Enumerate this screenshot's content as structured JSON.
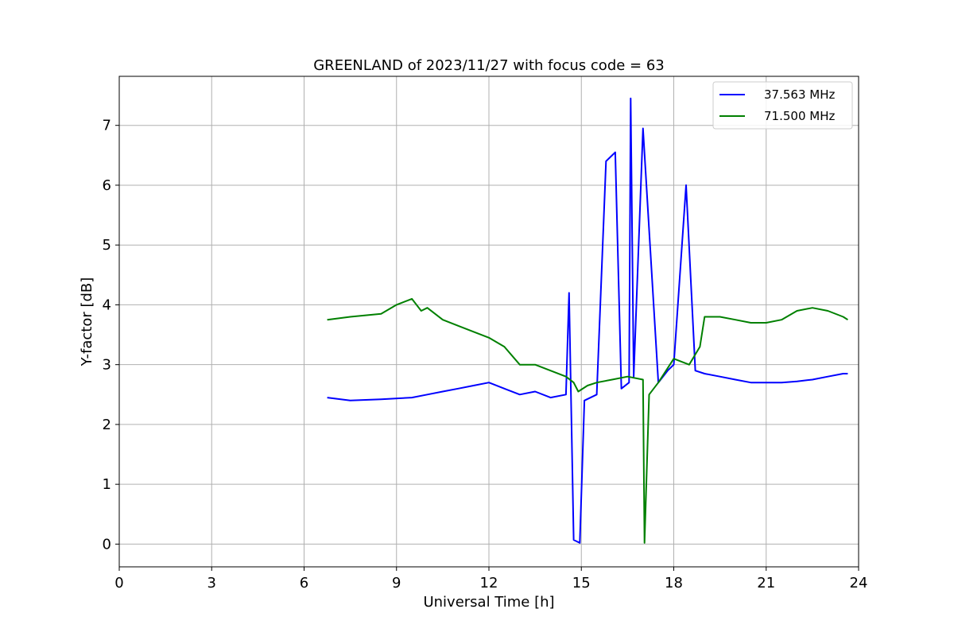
{
  "chart_data": {
    "type": "line",
    "title": "GREENLAND of 2023/11/27 with focus code = 63",
    "xlabel": "Universal Time [h]",
    "ylabel": "Y-factor [dB]",
    "xlim": [
      0,
      24
    ],
    "ylim": [
      -0.38,
      7.82
    ],
    "xticks": [
      0,
      3,
      6,
      9,
      12,
      15,
      18,
      21,
      24
    ],
    "yticks": [
      0,
      1,
      2,
      3,
      4,
      5,
      6,
      7
    ],
    "grid": true,
    "legend_position": "top-right",
    "series": [
      {
        "name": "37.563 MHz",
        "color": "#0000ff",
        "x": [
          6.75,
          7.5,
          8.5,
          9.5,
          10.0,
          10.5,
          11.0,
          11.5,
          12.0,
          12.5,
          13.0,
          13.5,
          14.0,
          14.5,
          14.6,
          14.75,
          14.95,
          15.1,
          15.5,
          15.8,
          15.9,
          16.1,
          16.3,
          16.55,
          16.6,
          16.7,
          17.0,
          17.5,
          17.8,
          18.0,
          18.4,
          18.7,
          19.0,
          19.5,
          20.0,
          20.5,
          21.0,
          21.5,
          22.0,
          22.5,
          23.0,
          23.5,
          23.65
        ],
        "y": [
          2.45,
          2.4,
          2.42,
          2.45,
          2.5,
          2.55,
          2.6,
          2.65,
          2.7,
          2.6,
          2.5,
          2.55,
          2.45,
          2.5,
          4.2,
          0.07,
          0.02,
          2.4,
          2.5,
          6.4,
          6.45,
          6.55,
          2.6,
          2.7,
          7.45,
          2.8,
          6.95,
          2.7,
          2.9,
          3.0,
          6.0,
          2.9,
          2.85,
          2.8,
          2.75,
          2.7,
          2.7,
          2.7,
          2.72,
          2.75,
          2.8,
          2.85,
          2.85
        ]
      },
      {
        "name": "71.500 MHz",
        "color": "#008000",
        "x": [
          6.75,
          7.5,
          8.5,
          9.0,
          9.5,
          9.8,
          10.0,
          10.5,
          11.0,
          11.5,
          12.0,
          12.5,
          13.0,
          13.5,
          14.0,
          14.5,
          14.75,
          14.9,
          15.2,
          15.5,
          16.0,
          16.5,
          17.0,
          17.05,
          17.2,
          17.5,
          18.0,
          18.5,
          18.85,
          19.0,
          19.5,
          20.0,
          20.5,
          21.0,
          21.5,
          22.0,
          22.5,
          23.0,
          23.5,
          23.65
        ],
        "y": [
          3.75,
          3.8,
          3.85,
          4.0,
          4.1,
          3.9,
          3.95,
          3.75,
          3.65,
          3.55,
          3.45,
          3.3,
          3.0,
          3.0,
          2.9,
          2.8,
          2.7,
          2.55,
          2.65,
          2.7,
          2.75,
          2.8,
          2.75,
          0.02,
          2.5,
          2.7,
          3.1,
          3.0,
          3.3,
          3.8,
          3.8,
          3.75,
          3.7,
          3.7,
          3.75,
          3.9,
          3.95,
          3.9,
          3.8,
          3.75
        ]
      }
    ]
  }
}
